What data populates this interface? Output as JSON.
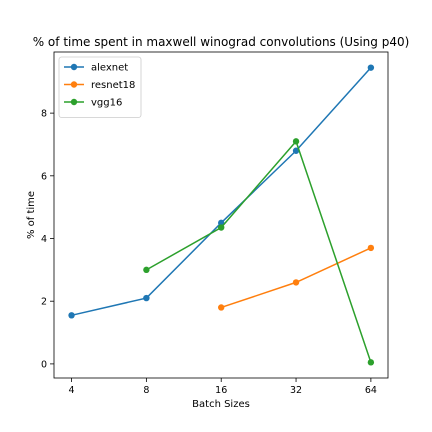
{
  "chart_data": {
    "type": "line",
    "title": "% of time spent in maxwell winograd convolutions (Using p40)",
    "xlabel": "Batch Sizes",
    "ylabel": "% of time",
    "x_scale": "log2",
    "xlim": [
      3.4,
      75
    ],
    "ylim": [
      -0.45,
      9.95
    ],
    "xticks": [
      4,
      8,
      16,
      32,
      64
    ],
    "yticks": [
      0,
      2,
      4,
      6,
      8
    ],
    "grid": false,
    "legend_position": "top-left",
    "series": [
      {
        "name": "alexnet",
        "color": "#1f77b4",
        "x": [
          4,
          8,
          16,
          32,
          64
        ],
        "y": [
          1.55,
          2.1,
          4.5,
          6.8,
          9.45
        ]
      },
      {
        "name": "resnet18",
        "color": "#ff7f0e",
        "x": [
          16,
          32,
          64
        ],
        "y": [
          1.8,
          2.6,
          3.7
        ]
      },
      {
        "name": "vgg16",
        "color": "#2ca02c",
        "x": [
          8,
          16,
          32,
          64
        ],
        "y": [
          3.0,
          4.35,
          7.1,
          0.05
        ]
      }
    ]
  }
}
